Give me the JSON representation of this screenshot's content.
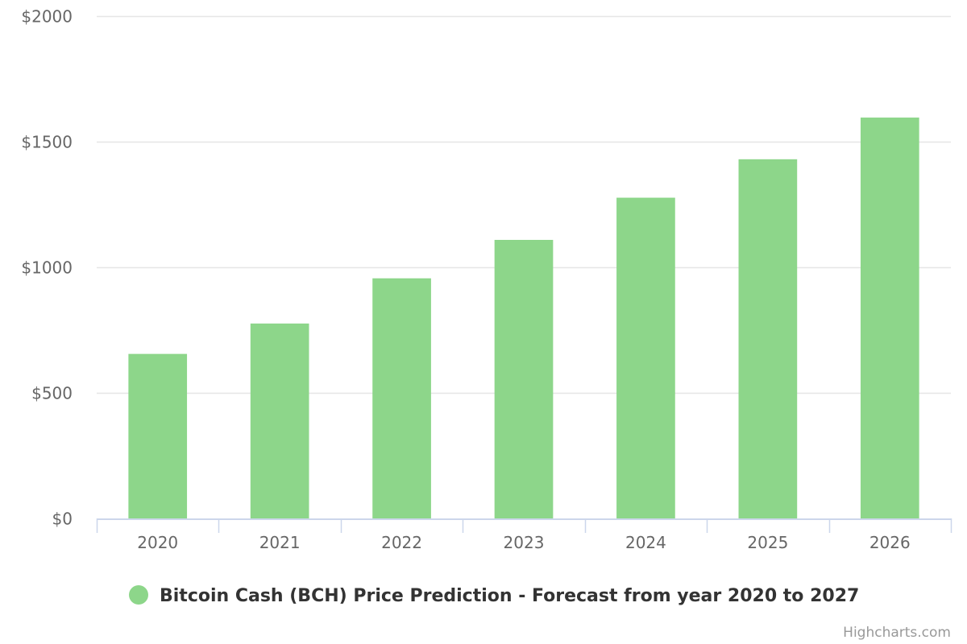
{
  "chart_data": {
    "type": "bar",
    "categories": [
      "2020",
      "2021",
      "2022",
      "2023",
      "2024",
      "2025",
      "2026"
    ],
    "series": [
      {
        "name": "Bitcoin Cash (BCH) Price Prediction - Forecast from year 2020 to 2027",
        "values": [
          655,
          776,
          956,
          1109,
          1277,
          1430,
          1596
        ],
        "color": "#8dd68a"
      }
    ],
    "ylim": [
      0,
      2000
    ],
    "yticks": [
      0,
      500,
      1000,
      1500,
      2000
    ],
    "ytick_labels": [
      "$0",
      "$500",
      "$1000",
      "$1500",
      "$2000"
    ],
    "grid": true,
    "legend_position": "bottom-center"
  },
  "credits": "Highcharts.com",
  "colors": {
    "bar": "#8dd68a",
    "grid": "#e6e6e6",
    "axis": "#ccd6eb",
    "label": "#666666"
  }
}
